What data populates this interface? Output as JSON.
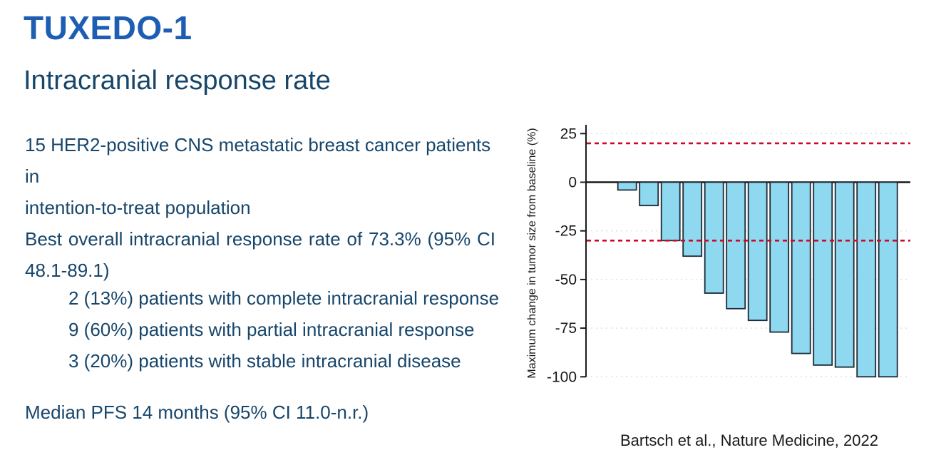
{
  "slide": {
    "title": "TUXEDO-1",
    "subtitle": "Intracranial response rate",
    "body": {
      "para1_lines": [
        "15 HER2-positive CNS metastatic breast cancer patients in",
        "intention-to-treat population"
      ],
      "para2_lines": [
        "Best overall intracranial response rate of 73.3% (95% CI",
        "48.1-89.1)"
      ],
      "sub_items": [
        "2 (13%) patients with complete intracranial response",
        "9 (60%) patients with partial intracranial response",
        "3 (20%) patients with stable intracranial disease"
      ],
      "median_pfs": "Median PFS 14 months (95% CI 11.0-n.r.)"
    },
    "citation": "Bartsch et al., Nature Medicine, 2022"
  },
  "colors": {
    "title_blue": "#1d5eb3",
    "body_blue": "#17466b",
    "bar_fill": "#8ed8f0",
    "bar_stroke": "#1e2a36",
    "threshold_red": "#cc0a26",
    "grid_gray": "#dcdcdc",
    "axis_black": "#1a1a1a"
  },
  "chart_data": {
    "type": "bar",
    "subtype": "waterfall",
    "title": "",
    "xlabel": "",
    "ylabel": "Maximum change in tumor size from baseline (%)",
    "n_patients": 14,
    "values": [
      0,
      -4,
      -12,
      -30,
      -38,
      -57,
      -65,
      -71,
      -77,
      -88,
      -94,
      -95,
      -100,
      -100
    ],
    "yticks": [
      25,
      0,
      -25,
      -50,
      -75,
      -100
    ],
    "ylim": [
      -104,
      32
    ],
    "gridlines": [
      25,
      -25,
      -50,
      -75,
      -100
    ],
    "grid_style": "dotted",
    "reference_lines": [
      {
        "y": 20,
        "style": "dashed",
        "color": "#cc0a26"
      },
      {
        "y": -30,
        "style": "dashed",
        "color": "#cc0a26"
      }
    ],
    "zero_line": true,
    "legend": "none"
  }
}
